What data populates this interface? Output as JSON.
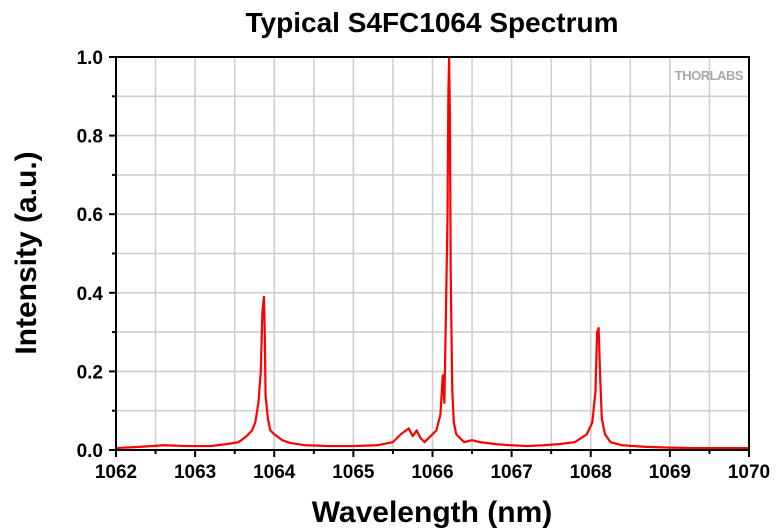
{
  "chart_data": {
    "type": "line",
    "title": "Typical S4FC1064 Spectrum",
    "xlabel": "Wavelength (nm)",
    "ylabel": "Intensity (a.u.)",
    "xlim": [
      1062,
      1070
    ],
    "ylim": [
      0,
      1.0
    ],
    "x_ticks": [
      1062,
      1063,
      1064,
      1065,
      1066,
      1067,
      1068,
      1069,
      1070
    ],
    "x_tick_labels": [
      "1062",
      "1063",
      "1064",
      "1065",
      "1066",
      "1067",
      "1068",
      "1069",
      "1070"
    ],
    "y_ticks": [
      0.0,
      0.2,
      0.4,
      0.6,
      0.8,
      1.0
    ],
    "y_tick_labels": [
      "0.0",
      "0.2",
      "0.4",
      "0.6",
      "0.8",
      "1.0"
    ],
    "grid": true,
    "legend": "none",
    "watermark": "THORLABS",
    "series": [
      {
        "name": "S4FC1064 spectrum",
        "color": "#ff0000",
        "x": [
          1062.0,
          1062.3,
          1062.6,
          1062.9,
          1063.2,
          1063.4,
          1063.55,
          1063.65,
          1063.72,
          1063.76,
          1063.8,
          1063.83,
          1063.85,
          1063.87,
          1063.88,
          1063.89,
          1063.9,
          1063.92,
          1063.95,
          1064.0,
          1064.1,
          1064.2,
          1064.4,
          1064.7,
          1065.0,
          1065.3,
          1065.5,
          1065.6,
          1065.7,
          1065.75,
          1065.8,
          1065.85,
          1065.9,
          1065.95,
          1066.0,
          1066.05,
          1066.1,
          1066.13,
          1066.15,
          1066.17,
          1066.19,
          1066.2,
          1066.21,
          1066.22,
          1066.23,
          1066.24,
          1066.25,
          1066.27,
          1066.3,
          1066.35,
          1066.4,
          1066.5,
          1066.6,
          1066.8,
          1067.0,
          1067.2,
          1067.4,
          1067.6,
          1067.8,
          1067.95,
          1068.02,
          1068.06,
          1068.08,
          1068.1,
          1068.12,
          1068.14,
          1068.18,
          1068.25,
          1068.4,
          1068.7,
          1069.0,
          1069.3,
          1069.6,
          1069.9,
          1070.0
        ],
        "y": [
          0.005,
          0.008,
          0.012,
          0.01,
          0.01,
          0.015,
          0.02,
          0.035,
          0.05,
          0.07,
          0.12,
          0.2,
          0.35,
          0.39,
          0.3,
          0.14,
          0.12,
          0.08,
          0.05,
          0.04,
          0.025,
          0.018,
          0.012,
          0.01,
          0.01,
          0.012,
          0.02,
          0.04,
          0.055,
          0.035,
          0.05,
          0.03,
          0.02,
          0.03,
          0.04,
          0.05,
          0.09,
          0.19,
          0.12,
          0.35,
          0.6,
          0.9,
          1.0,
          0.85,
          0.45,
          0.3,
          0.15,
          0.07,
          0.04,
          0.03,
          0.02,
          0.025,
          0.02,
          0.015,
          0.012,
          0.01,
          0.012,
          0.015,
          0.02,
          0.04,
          0.07,
          0.15,
          0.3,
          0.31,
          0.18,
          0.08,
          0.04,
          0.02,
          0.012,
          0.008,
          0.006,
          0.005,
          0.005,
          0.005,
          0.005
        ]
      }
    ]
  }
}
